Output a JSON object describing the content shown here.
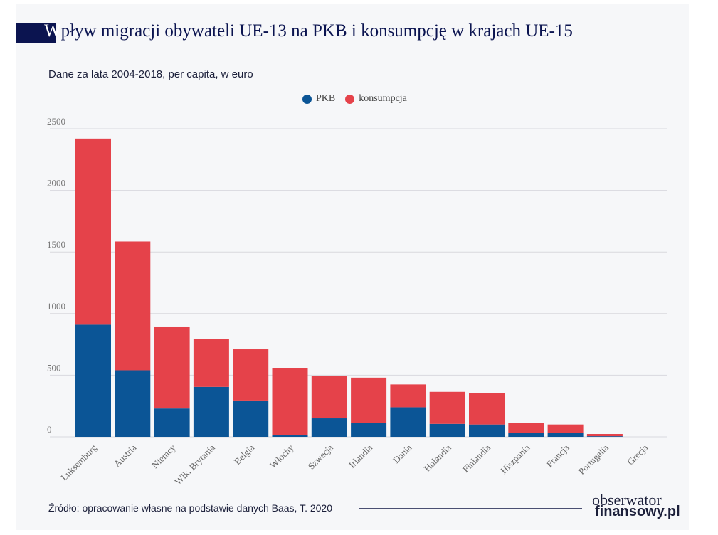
{
  "title_first_letter": "W",
  "title_rest": "pływ migracji obywateli UE-13 na PKB i konsumpcję w krajach UE-15",
  "subtitle": "Dane za lata 2004-2018, per capita, w euro",
  "source": "Źródło: opracowanie własne na podstawie danych Baas, T. 2020",
  "logo": {
    "line1": "obserwator",
    "line2": "finansowy.pl"
  },
  "chart_data": {
    "type": "bar",
    "stacked": true,
    "title": "Wpływ migracji obywateli UE-13 na PKB i konsumpcję w krajach UE-15",
    "subtitle": "Dane za lata 2004-2018, per capita, w euro",
    "categories": [
      "Luksemburg",
      "Austria",
      "Niemcy",
      "Wlk. Brytania",
      "Belgia",
      "Włochy",
      "Szwecja",
      "Irlandia",
      "Dania",
      "Holandia",
      "Finlandia",
      "Hiszpania",
      "Francja",
      "Portugalia",
      "Grecja"
    ],
    "series": [
      {
        "name": "PKB",
        "color": "#0b5596",
        "values": [
          910,
          540,
          230,
          405,
          295,
          15,
          150,
          115,
          240,
          105,
          100,
          30,
          30,
          5,
          0
        ]
      },
      {
        "name": "konsumpcja",
        "color": "#e5424a",
        "values": [
          1510,
          1045,
          665,
          390,
          415,
          545,
          345,
          365,
          185,
          260,
          255,
          85,
          70,
          18,
          0
        ]
      }
    ],
    "ylim": [
      0,
      2500
    ],
    "yticks": [
      0,
      500,
      1000,
      1500,
      2000,
      2500
    ],
    "grid": true,
    "legend": "top-center"
  }
}
